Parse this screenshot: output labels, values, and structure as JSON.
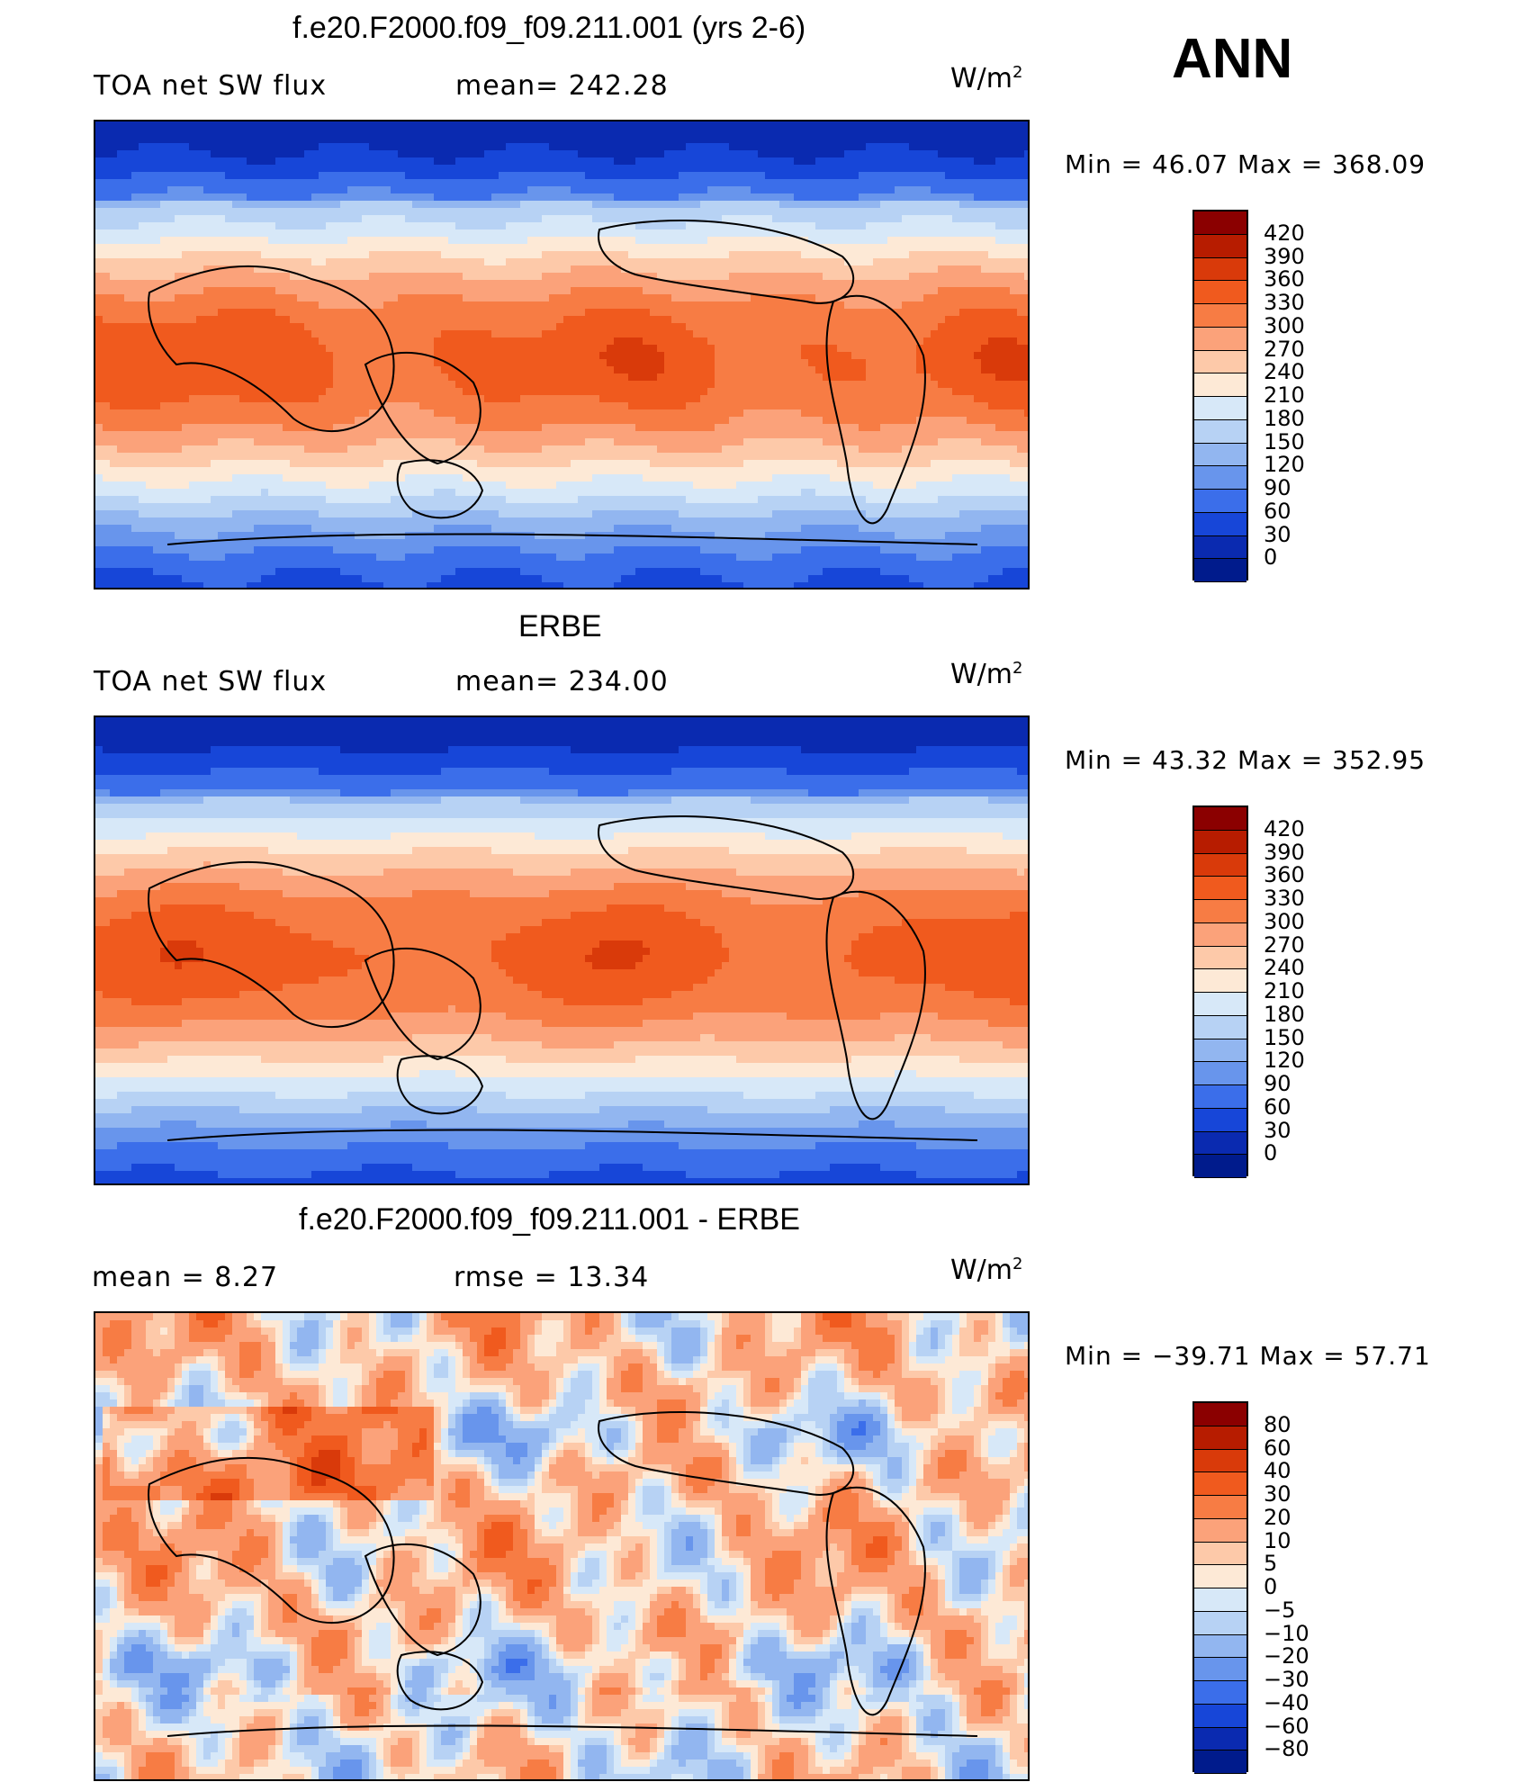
{
  "season": "ANN",
  "panels": [
    {
      "id": "model",
      "title": "f.e20.F2000.f09_f09.211.001 (yrs 2-6)",
      "left_label": "TOA net SW flux",
      "center_label": "mean= 242.28",
      "unit": "W/m",
      "unit_exp": "2",
      "min_max": "Min =   46.07 Max = 368.09",
      "legend_levels": [
        "420",
        "390",
        "360",
        "330",
        "300",
        "270",
        "240",
        "210",
        "180",
        "150",
        "120",
        "90",
        "60",
        "30",
        "0"
      ],
      "colors": [
        "#8b0000",
        "#b71c00",
        "#d93a0a",
        "#f05a1e",
        "#f77c44",
        "#fba27a",
        "#fdc9a9",
        "#fde9d6",
        "#d7e8f8",
        "#b7d2f4",
        "#92b6f0",
        "#6895ec",
        "#3b6eea",
        "#1746d8",
        "#0a2ab0",
        "#001b8c"
      ],
      "field": "model"
    },
    {
      "id": "obs",
      "title": "ERBE",
      "left_label": "TOA net SW flux",
      "center_label": "mean= 234.00",
      "unit": "W/m",
      "unit_exp": "2",
      "min_max": "Min =   43.32 Max = 352.95",
      "legend_levels": [
        "420",
        "390",
        "360",
        "330",
        "300",
        "270",
        "240",
        "210",
        "180",
        "150",
        "120",
        "90",
        "60",
        "30",
        "0"
      ],
      "colors": [
        "#8b0000",
        "#b71c00",
        "#d93a0a",
        "#f05a1e",
        "#f77c44",
        "#fba27a",
        "#fdc9a9",
        "#fde9d6",
        "#d7e8f8",
        "#b7d2f4",
        "#92b6f0",
        "#6895ec",
        "#3b6eea",
        "#1746d8",
        "#0a2ab0",
        "#001b8c"
      ],
      "field": "obs"
    },
    {
      "id": "diff",
      "title": "f.e20.F2000.f09_f09.211.001 - ERBE",
      "left_label": "mean =    8.27",
      "center_label": "rmse =   13.34",
      "unit": "W/m",
      "unit_exp": "2",
      "min_max": "Min = −39.71 Max =  57.71",
      "legend_levels": [
        "80",
        "60",
        "40",
        "30",
        "20",
        "10",
        "5",
        "0",
        "−5",
        "−10",
        "−20",
        "−30",
        "−40",
        "−60",
        "−80"
      ],
      "colors": [
        "#8b0000",
        "#b71c00",
        "#d93a0a",
        "#f05a1e",
        "#f77c44",
        "#fba27a",
        "#fdc9a9",
        "#fde9d6",
        "#d7e8f8",
        "#b7d2f4",
        "#92b6f0",
        "#6895ec",
        "#3b6eea",
        "#1746d8",
        "#0a2ab0",
        "#001b8c"
      ],
      "field": "diff"
    }
  ]
}
